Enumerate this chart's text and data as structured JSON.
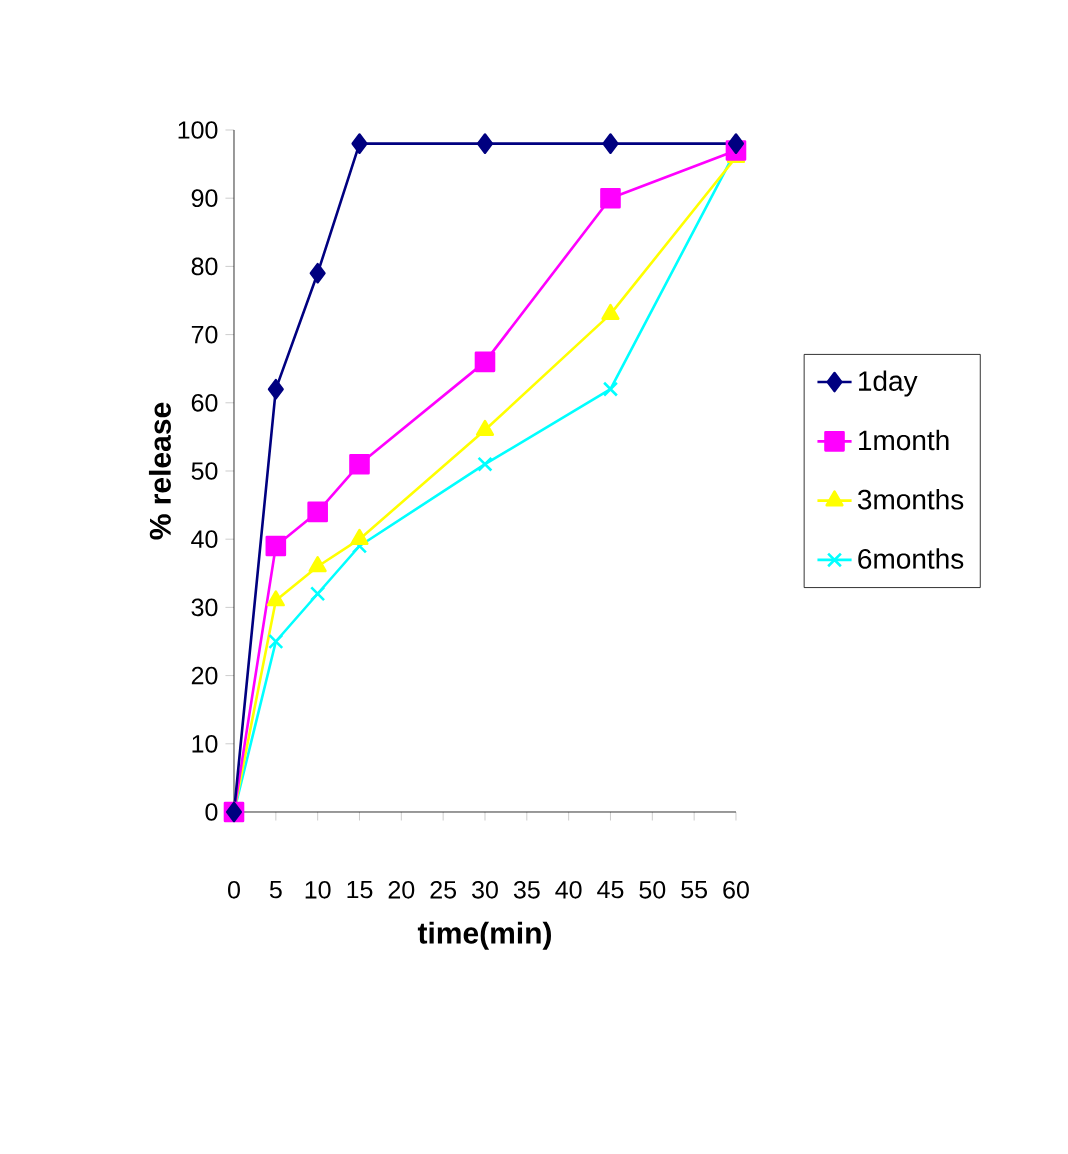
{
  "chart_data": {
    "type": "line",
    "xlabel": "time(min)",
    "ylabel": "% release",
    "x": [
      0,
      5,
      10,
      15,
      30,
      45,
      60
    ],
    "series": [
      {
        "name": "1day",
        "color": "#000080",
        "marker": "diamond",
        "values": [
          0,
          62,
          79,
          98,
          98,
          98,
          98
        ]
      },
      {
        "name": "1month",
        "color": "#ff00ff",
        "marker": "square",
        "values": [
          0,
          39,
          44,
          51,
          66,
          90,
          97
        ]
      },
      {
        "name": "3months",
        "color": "#ffff00",
        "marker": "triangle",
        "values": [
          0,
          31,
          36,
          40,
          56,
          73,
          96
        ]
      },
      {
        "name": "6months",
        "color": "#00ffff",
        "marker": "cross",
        "values": [
          0,
          25,
          32,
          39,
          51,
          62,
          97
        ]
      }
    ],
    "xlim": [
      0,
      60
    ],
    "xticks": [
      0,
      5,
      10,
      15,
      20,
      25,
      30,
      35,
      40,
      45,
      50,
      55,
      60
    ],
    "ylim": [
      0,
      100
    ],
    "yticks": [
      0,
      10,
      20,
      30,
      40,
      50,
      60,
      70,
      80,
      90,
      100
    ],
    "grid": false,
    "legend": "right"
  }
}
